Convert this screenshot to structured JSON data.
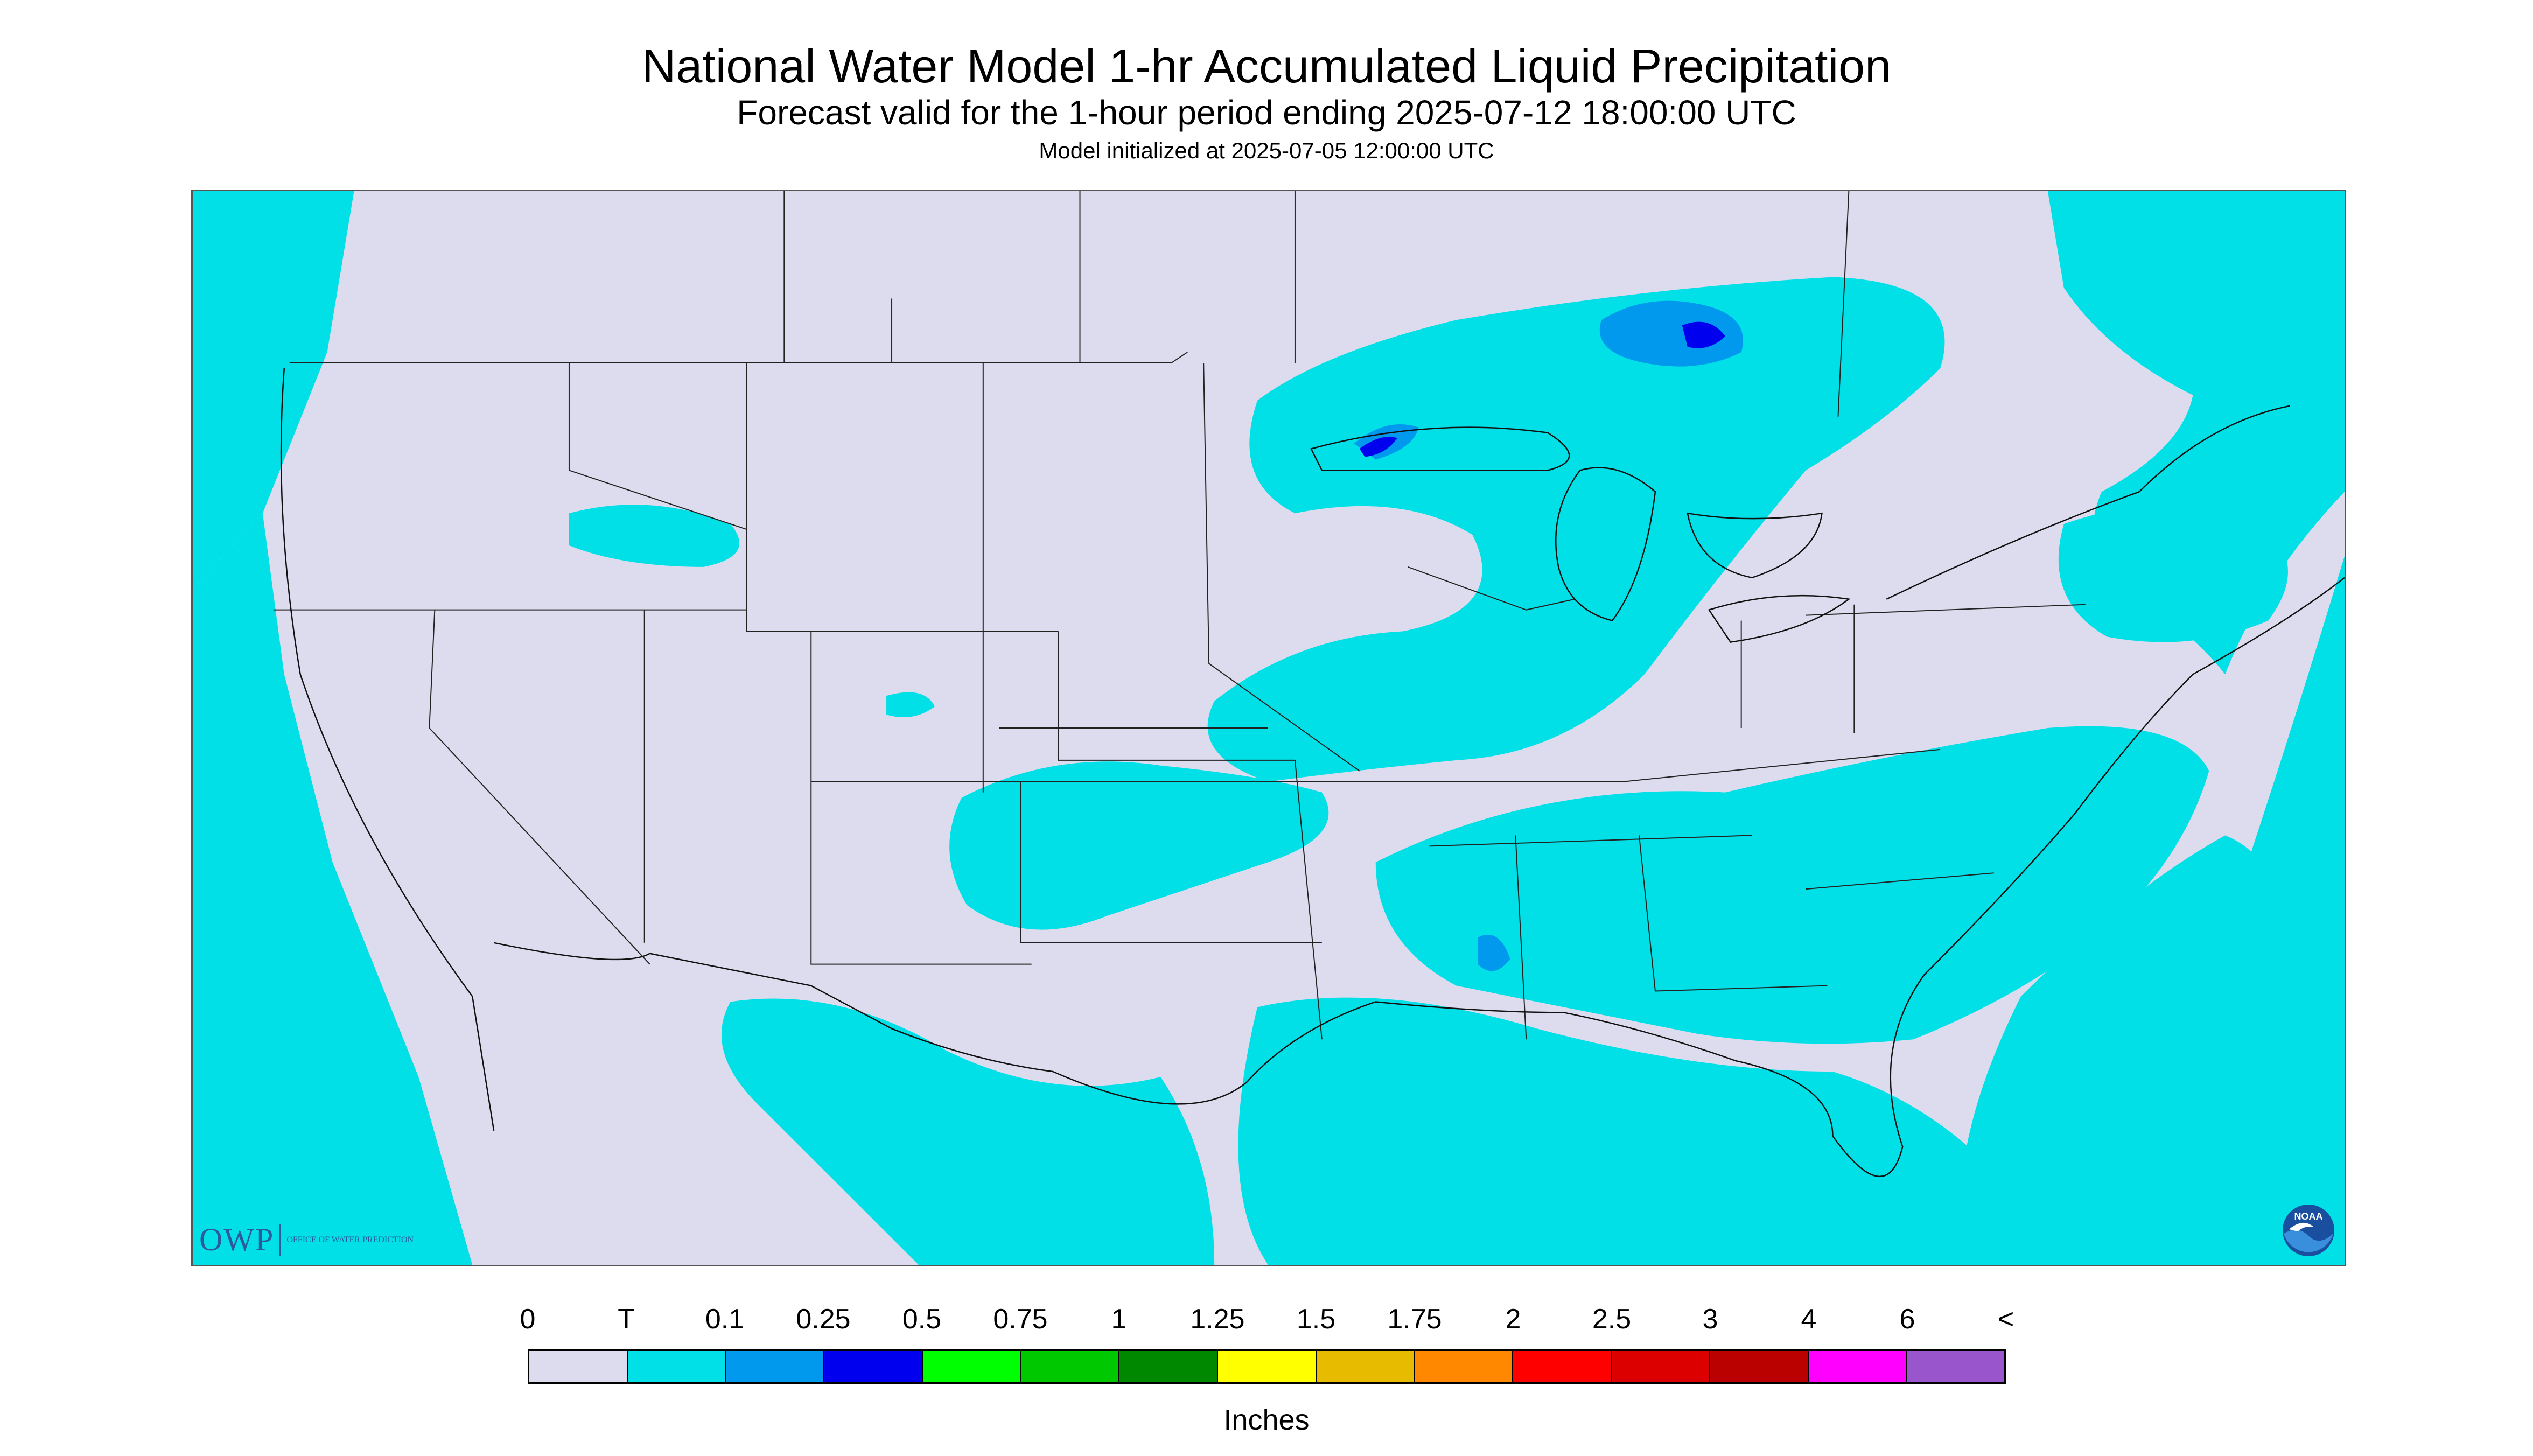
{
  "title": "National Water Model 1-hr Accumulated Liquid Precipitation",
  "subtitle": "Forecast valid for the 1-hour period ending 2025-07-12 18:00:00 UTC",
  "init_line": "Model initialized at 2025-07-05 12:00:00 UTC",
  "legend": {
    "labels": [
      "0",
      "T",
      "0.1",
      "0.25",
      "0.5",
      "0.75",
      "1",
      "1.25",
      "1.5",
      "1.75",
      "2",
      "2.5",
      "3",
      "4",
      "6",
      "<"
    ],
    "colors": [
      "#dcdcee",
      "#00e0e6",
      "#0099ee",
      "#0000ee",
      "#00ff00",
      "#00c800",
      "#008800",
      "#ffff00",
      "#e6bb00",
      "#ff8800",
      "#ff0000",
      "#dd0000",
      "#bb0000",
      "#ff00ff",
      "#9955cc"
    ],
    "units": "Inches"
  },
  "logos": {
    "owp_abbrev": "OWP",
    "owp_full": "OFFICE OF WATER PREDICTION",
    "noaa": "NOAA"
  },
  "palette": {
    "background_no_precip": "#dcdcee",
    "trace": "#00e0e6",
    "light": "#0099ee",
    "moderate": "#0000ee"
  }
}
